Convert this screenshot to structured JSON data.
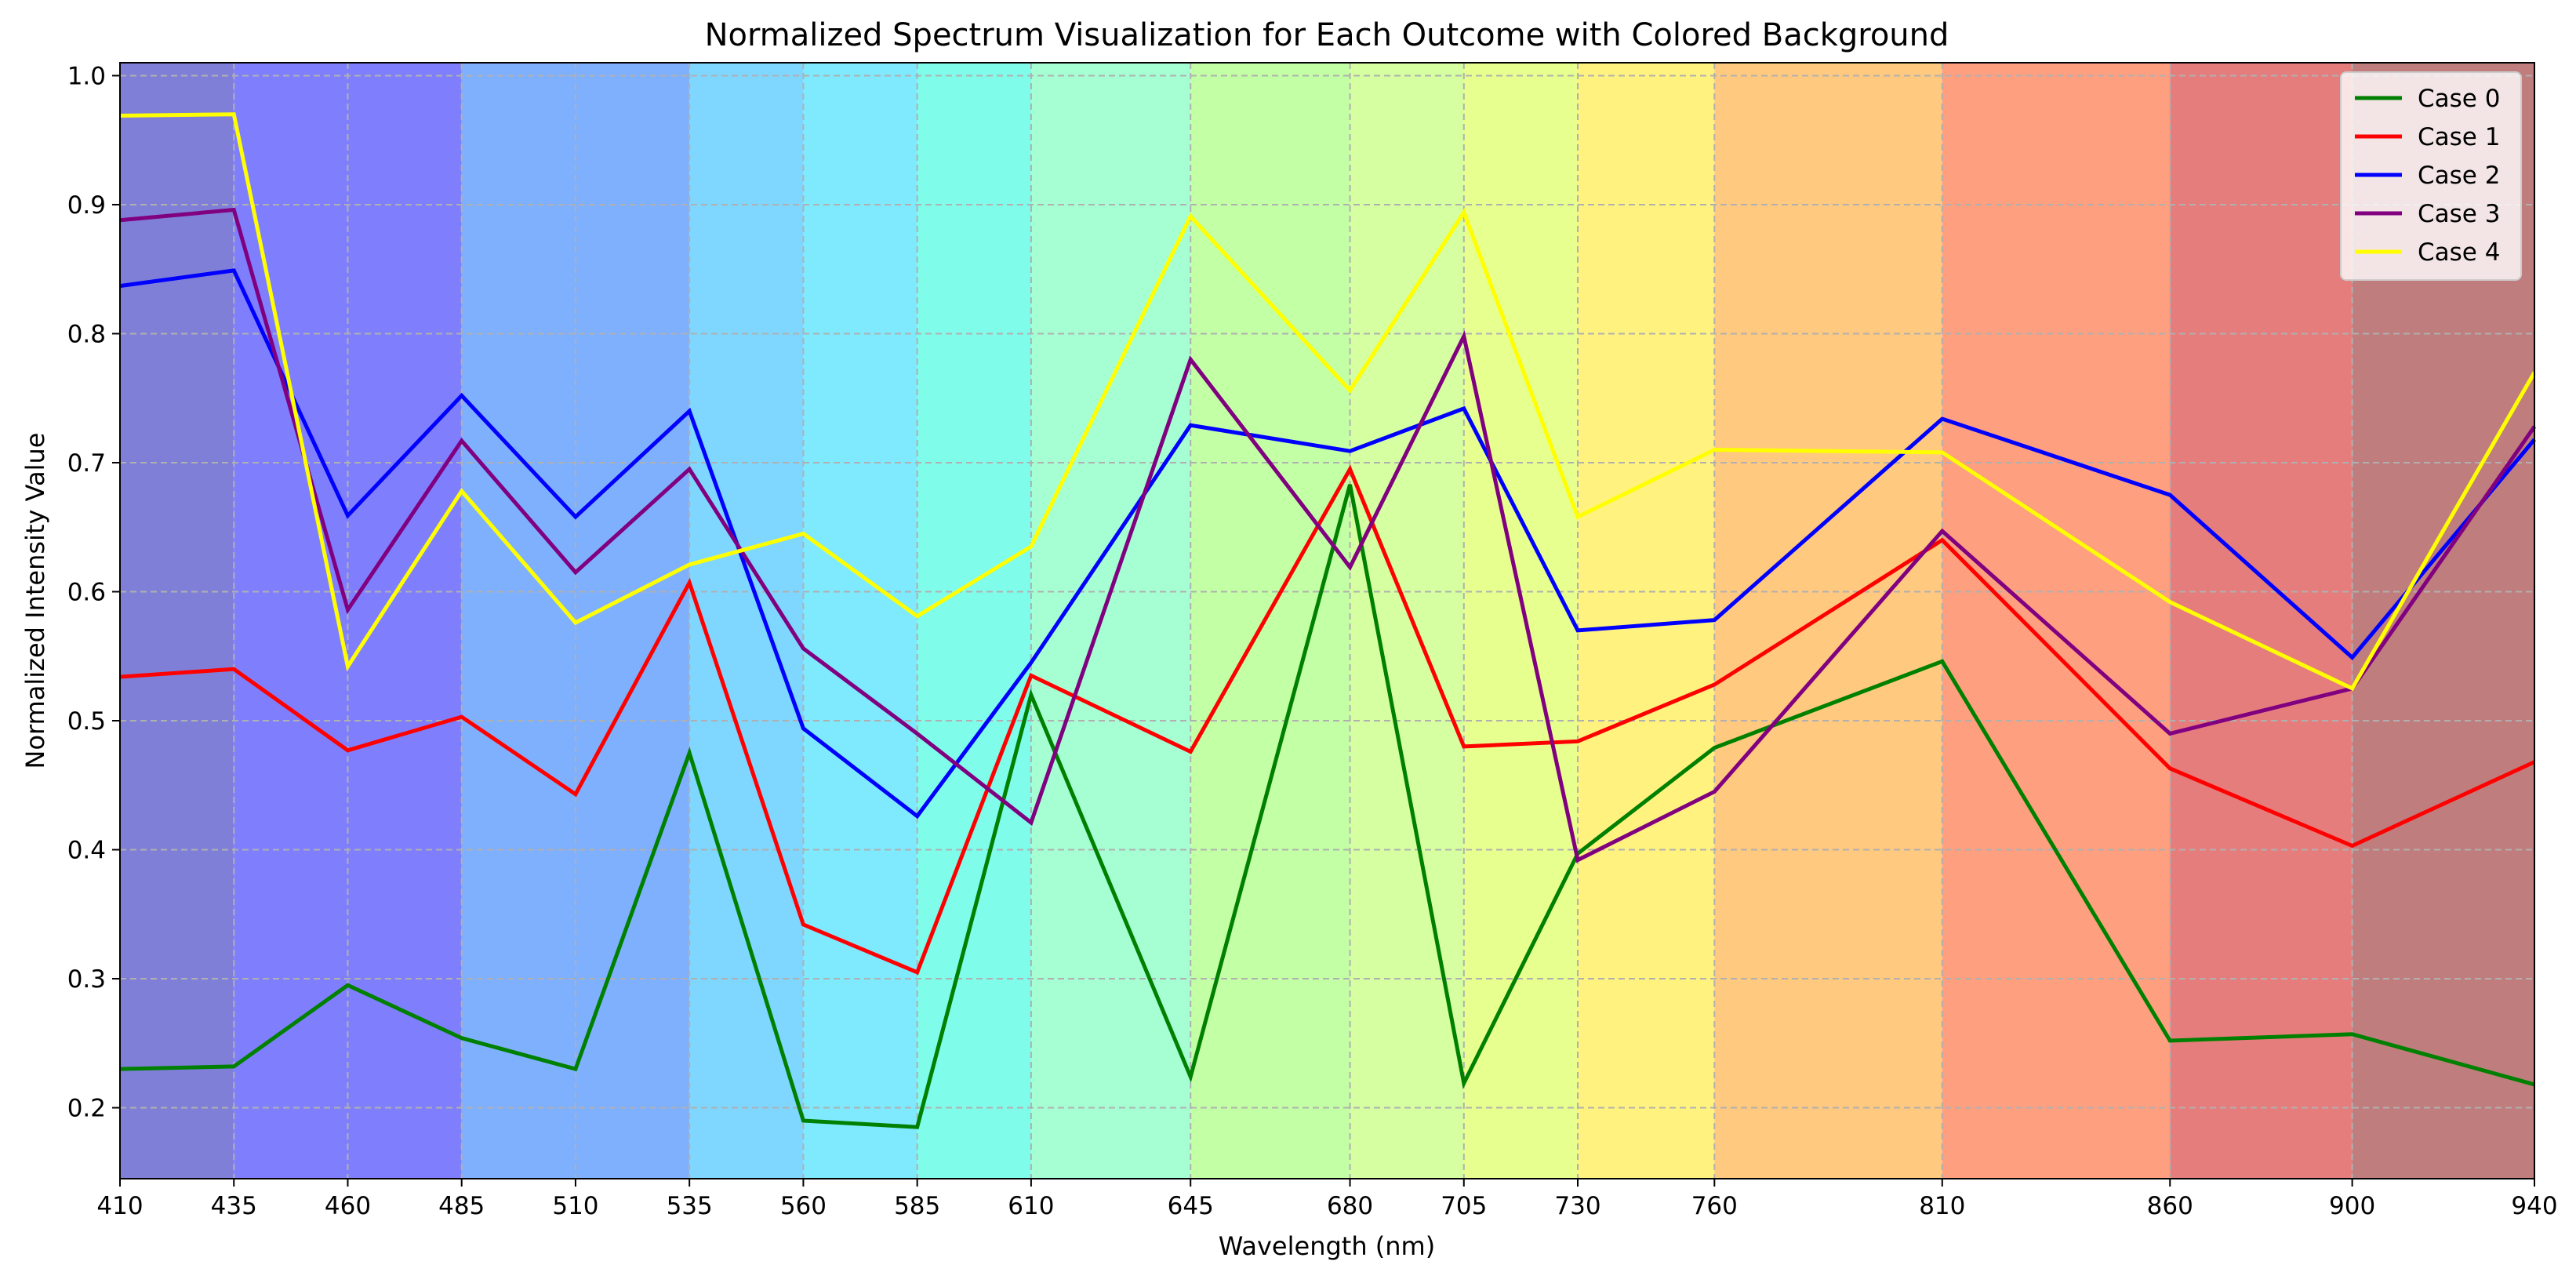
{
  "chart_data": {
    "type": "line",
    "title": "Normalized Spectrum Visualization for Each Outcome with Colored Background",
    "xlabel": "Wavelength (nm)",
    "ylabel": "Normalized Intensity Value",
    "xlim": [
      410,
      940
    ],
    "ylim": [
      0.145,
      1.01
    ],
    "grid": true,
    "legend_position": "top-right",
    "x": [
      410,
      435,
      460,
      485,
      510,
      535,
      560,
      585,
      610,
      645,
      680,
      705,
      730,
      760,
      810,
      860,
      900,
      940
    ],
    "x_tick_labels": [
      "410",
      "435",
      "460",
      "485",
      "510",
      "535",
      "560",
      "585",
      "610",
      "645",
      "680",
      "705",
      "730",
      "760",
      "810",
      "860",
      "900",
      "940"
    ],
    "y_ticks": [
      0.2,
      0.3,
      0.4,
      0.5,
      0.6,
      0.7,
      0.8,
      0.9,
      1.0
    ],
    "y_tick_labels": [
      "0.2",
      "0.3",
      "0.4",
      "0.5",
      "0.6",
      "0.7",
      "0.8",
      "0.9",
      "1.0"
    ],
    "background_bands": [
      {
        "from": 410,
        "to": 435,
        "color": "#7f7fd8"
      },
      {
        "from": 435,
        "to": 485,
        "color": "#7f7ffe"
      },
      {
        "from": 485,
        "to": 535,
        "color": "#7fb0fe"
      },
      {
        "from": 535,
        "to": 560,
        "color": "#7fd6fe"
      },
      {
        "from": 560,
        "to": 585,
        "color": "#7fe9fe"
      },
      {
        "from": 585,
        "to": 610,
        "color": "#7ffcea"
      },
      {
        "from": 610,
        "to": 645,
        "color": "#a6ffd3"
      },
      {
        "from": 645,
        "to": 680,
        "color": "#c2ffa5"
      },
      {
        "from": 680,
        "to": 705,
        "color": "#d5ffa0"
      },
      {
        "from": 705,
        "to": 730,
        "color": "#e7ff8e"
      },
      {
        "from": 730,
        "to": 760,
        "color": "#fff27f"
      },
      {
        "from": 760,
        "to": 810,
        "color": "#ffc97f"
      },
      {
        "from": 810,
        "to": 860,
        "color": "#fe9f7f"
      },
      {
        "from": 860,
        "to": 900,
        "color": "#e67d7d"
      },
      {
        "from": 900,
        "to": 940,
        "color": "#c07d7d"
      }
    ],
    "series": [
      {
        "name": "Case 0",
        "color": "#008000",
        "values": [
          0.23,
          0.232,
          0.295,
          0.254,
          0.23,
          0.475,
          0.19,
          0.185,
          0.52,
          0.224,
          0.683,
          0.219,
          0.397,
          0.479,
          0.546,
          0.252,
          0.257,
          0.218
        ]
      },
      {
        "name": "Case 1",
        "color": "#ff0000",
        "values": [
          0.534,
          0.54,
          0.477,
          0.503,
          0.443,
          0.607,
          0.342,
          0.305,
          0.535,
          0.476,
          0.695,
          0.48,
          0.484,
          0.528,
          0.64,
          0.463,
          0.403,
          0.468
        ]
      },
      {
        "name": "Case 2",
        "color": "#0000ff",
        "values": [
          0.837,
          0.849,
          0.659,
          0.752,
          0.658,
          0.74,
          0.494,
          0.426,
          0.545,
          0.729,
          0.709,
          0.742,
          0.57,
          0.578,
          0.734,
          0.675,
          0.549,
          0.718
        ]
      },
      {
        "name": "Case 3",
        "color": "#800080",
        "values": [
          0.888,
          0.896,
          0.586,
          0.717,
          0.615,
          0.695,
          0.556,
          0.49,
          0.421,
          0.78,
          0.619,
          0.798,
          0.392,
          0.445,
          0.647,
          0.49,
          0.525,
          0.728
        ]
      },
      {
        "name": "Case 4",
        "color": "#ffff00",
        "values": [
          0.969,
          0.97,
          0.542,
          0.678,
          0.576,
          0.621,
          0.645,
          0.581,
          0.635,
          0.891,
          0.756,
          0.894,
          0.658,
          0.71,
          0.708,
          0.592,
          0.525,
          0.77
        ]
      }
    ]
  }
}
